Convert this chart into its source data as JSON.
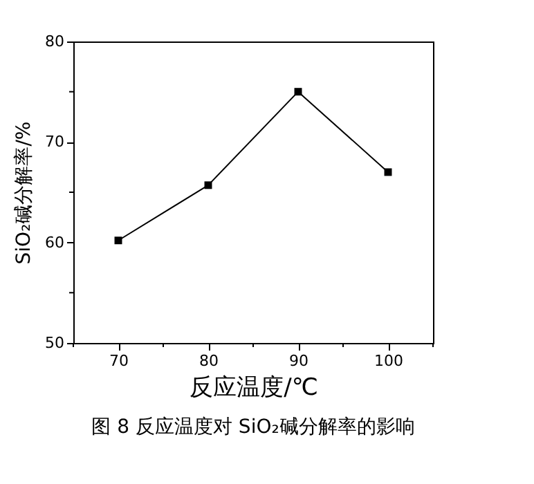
{
  "chart_data": {
    "type": "line",
    "xlabel": "反应温度/℃",
    "ylabel": "SiO₂碱分解率/%",
    "x": [
      70,
      80,
      90,
      100
    ],
    "series": [
      {
        "color": "#000000",
        "values": [
          60.2,
          65.7,
          75,
          67
        ]
      }
    ],
    "xlim": [
      65,
      105
    ],
    "xticks": [
      {
        "value": 65,
        "label": null
      },
      70,
      {
        "value": 75,
        "label": null
      },
      80,
      {
        "value": 85,
        "label": null
      },
      90,
      {
        "value": 95,
        "label": null
      },
      100,
      {
        "value": 105,
        "label": null
      }
    ],
    "ylim": [
      50,
      80
    ],
    "yticks": [
      50,
      {
        "value": 55,
        "label": null
      },
      60,
      {
        "value": 65,
        "label": null
      },
      70,
      {
        "value": 75,
        "label": null
      },
      80
    ],
    "marker": "square",
    "line_style": "solid",
    "grid": false,
    "legend": false,
    "annotations": [
      "图 8   反应温度对 SiO₂碱分解率的影响"
    ]
  }
}
